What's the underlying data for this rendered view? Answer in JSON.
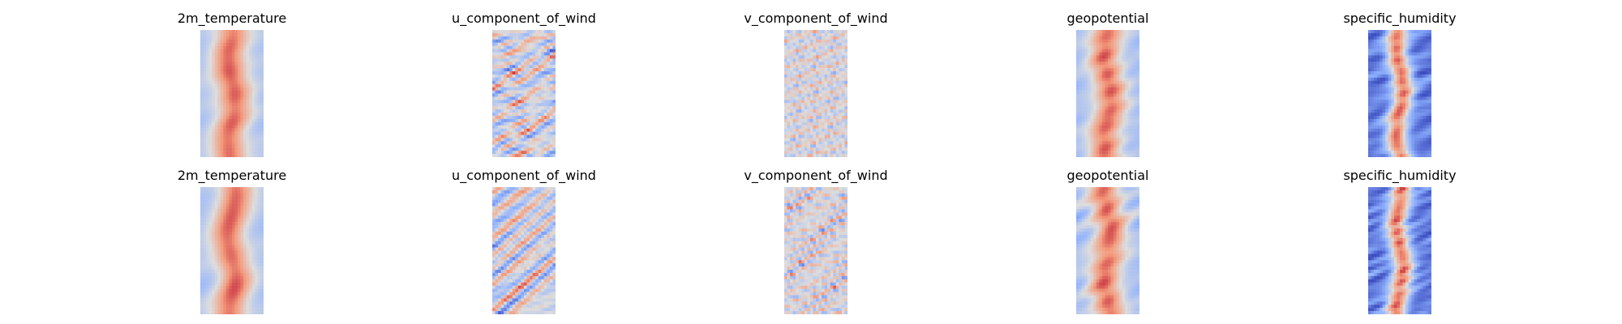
{
  "chart_data": {
    "type": "heatmap",
    "colormap": "coolwarm",
    "colors": {
      "low": "#3b4cc0",
      "mid": "#dddddd",
      "high": "#b40426"
    },
    "axes_visible": false,
    "rows": [
      {
        "panels": [
          {
            "title": "2m_temperature",
            "variable": "2m_temperature"
          },
          {
            "title": "u_component_of_wind",
            "variable": "u_component_of_wind"
          },
          {
            "title": "v_component_of_wind",
            "variable": "v_component_of_wind"
          },
          {
            "title": "geopotential",
            "variable": "geopotential"
          },
          {
            "title": "specific_humidity",
            "variable": "specific_humidity"
          }
        ]
      },
      {
        "panels": [
          {
            "title": "2m_temperature",
            "variable": "2m_temperature"
          },
          {
            "title": "u_component_of_wind",
            "variable": "u_component_of_wind"
          },
          {
            "title": "v_component_of_wind",
            "variable": "v_component_of_wind"
          },
          {
            "title": "geopotential",
            "variable": "geopotential"
          },
          {
            "title": "specific_humidity",
            "variable": "specific_humidity"
          }
        ]
      }
    ]
  }
}
